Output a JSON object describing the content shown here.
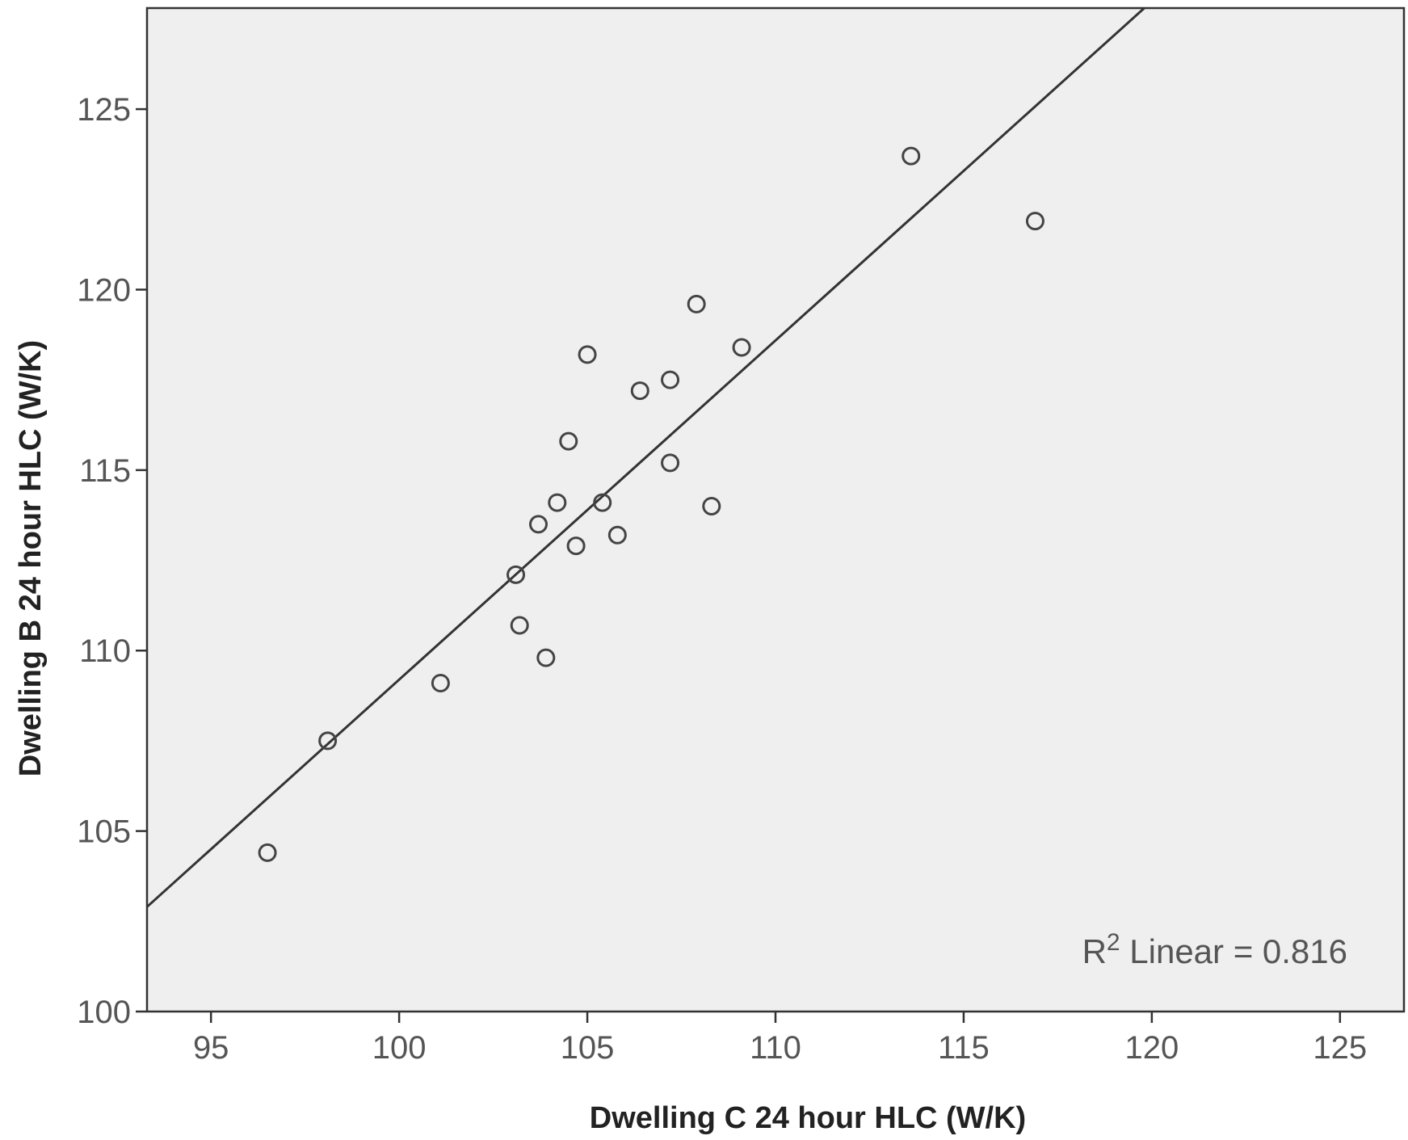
{
  "chart_data": {
    "type": "scatter",
    "title": "",
    "xlabel": "Dwelling C 24 hour HLC (W/K)",
    "ylabel": "Dwelling B 24 hour HLC (W/K)",
    "xlim": [
      93.3,
      126.7
    ],
    "ylim": [
      100,
      127.8
    ],
    "xticks": [
      95,
      100,
      105,
      110,
      115,
      120,
      125
    ],
    "yticks": [
      100,
      105,
      110,
      115,
      120,
      125
    ],
    "grid": false,
    "plot_background": "#efefef",
    "marker_color": "#444444",
    "line_color": "#333333",
    "points": [
      {
        "x": 96.5,
        "y": 104.4
      },
      {
        "x": 98.1,
        "y": 107.5
      },
      {
        "x": 101.1,
        "y": 109.1
      },
      {
        "x": 103.1,
        "y": 112.1
      },
      {
        "x": 103.2,
        "y": 110.7
      },
      {
        "x": 103.7,
        "y": 113.5
      },
      {
        "x": 103.9,
        "y": 109.8
      },
      {
        "x": 104.2,
        "y": 114.1
      },
      {
        "x": 104.5,
        "y": 115.8
      },
      {
        "x": 104.7,
        "y": 112.9
      },
      {
        "x": 105.0,
        "y": 118.2
      },
      {
        "x": 105.4,
        "y": 114.1
      },
      {
        "x": 105.8,
        "y": 113.2
      },
      {
        "x": 106.4,
        "y": 117.2
      },
      {
        "x": 107.2,
        "y": 115.2
      },
      {
        "x": 107.2,
        "y": 117.5
      },
      {
        "x": 107.9,
        "y": 119.6
      },
      {
        "x": 108.3,
        "y": 114.0
      },
      {
        "x": 109.1,
        "y": 118.4
      },
      {
        "x": 113.6,
        "y": 123.7
      },
      {
        "x": 116.9,
        "y": 121.9
      }
    ],
    "fit_line": {
      "x": [
        93.3,
        119.8
      ],
      "y": [
        102.9,
        127.8
      ]
    },
    "annotation": {
      "prefix": "R",
      "superscript": "2",
      "suffix": " Linear = 0.816"
    }
  }
}
